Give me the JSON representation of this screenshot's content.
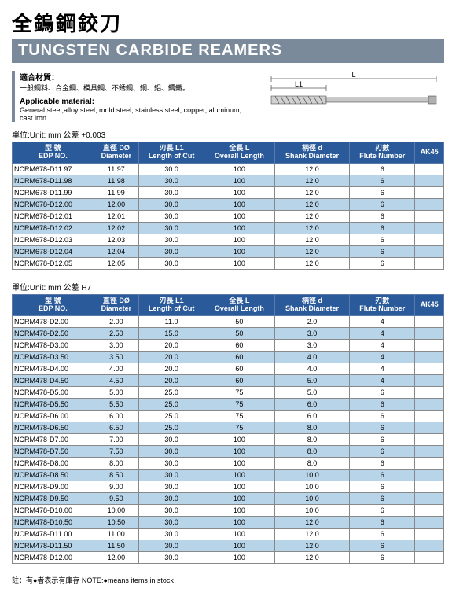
{
  "titles": {
    "cn": "全鎢鋼鉸刀",
    "en": "TUNGSTEN CARBIDE REAMERS"
  },
  "material": {
    "label_cn": "適合材質：",
    "desc_cn": "一般鋼料、合金鋼、模具鋼、不銹鋼、銅、鋁、鑄鐵。",
    "label_en": "Applicable material:",
    "desc_en": "General steel,alloy steel, mold steel, stainless steel, copper, aluminum, cast iron."
  },
  "diagram": {
    "label_L": "L",
    "label_L1": "L1"
  },
  "table1": {
    "unit": "單位:Unit: mm  公差 +0.003",
    "headers": [
      "型 號\nEDP NO.",
      "直徑 DØ\nDiameter",
      "刃長 L1\nLength of Cut",
      "全長 L\nOverall Length",
      "柄徑 d\nShank Diameter",
      "刃數\nFlute Number",
      "AK45"
    ],
    "rows": [
      [
        "NCRM678-D11.97",
        "11.97",
        "30.0",
        "100",
        "12.0",
        "6",
        ""
      ],
      [
        "NCRM678-D11.98",
        "11.98",
        "30.0",
        "100",
        "12.0",
        "6",
        ""
      ],
      [
        "NCRM678-D11.99",
        "11.99",
        "30.0",
        "100",
        "12.0",
        "6",
        ""
      ],
      [
        "NCRM678-D12.00",
        "12.00",
        "30.0",
        "100",
        "12.0",
        "6",
        ""
      ],
      [
        "NCRM678-D12.01",
        "12.01",
        "30.0",
        "100",
        "12.0",
        "6",
        ""
      ],
      [
        "NCRM678-D12.02",
        "12.02",
        "30.0",
        "100",
        "12.0",
        "6",
        ""
      ],
      [
        "NCRM678-D12.03",
        "12.03",
        "30.0",
        "100",
        "12.0",
        "6",
        ""
      ],
      [
        "NCRM678-D12.04",
        "12.04",
        "30.0",
        "100",
        "12.0",
        "6",
        ""
      ],
      [
        "NCRM678-D12.05",
        "12.05",
        "30.0",
        "100",
        "12.0",
        "6",
        ""
      ]
    ]
  },
  "table2": {
    "unit": "單位:Unit: mm  公差 H7",
    "headers": [
      "型 號\nEDP NO.",
      "直徑 DØ\nDiameter",
      "刃長 L1\nLength of Cut",
      "全長 L\nOverall Length",
      "柄徑 d\nShank Diameter",
      "刃數\nFlute Number",
      "AK45"
    ],
    "rows": [
      [
        "NCRM478-D2.00",
        "2.00",
        "11.0",
        "50",
        "2.0",
        "4",
        ""
      ],
      [
        "NCRM478-D2.50",
        "2.50",
        "15.0",
        "50",
        "3.0",
        "4",
        ""
      ],
      [
        "NCRM478-D3.00",
        "3.00",
        "20.0",
        "60",
        "3.0",
        "4",
        ""
      ],
      [
        "NCRM478-D3.50",
        "3.50",
        "20.0",
        "60",
        "4.0",
        "4",
        ""
      ],
      [
        "NCRM478-D4.00",
        "4.00",
        "20.0",
        "60",
        "4.0",
        "4",
        ""
      ],
      [
        "NCRM478-D4.50",
        "4.50",
        "20.0",
        "60",
        "5.0",
        "4",
        ""
      ],
      [
        "NCRM478-D5.00",
        "5.00",
        "25.0",
        "75",
        "5.0",
        "6",
        ""
      ],
      [
        "NCRM478-D5.50",
        "5.50",
        "25.0",
        "75",
        "6.0",
        "6",
        ""
      ],
      [
        "NCRM478-D6.00",
        "6.00",
        "25.0",
        "75",
        "6.0",
        "6",
        ""
      ],
      [
        "NCRM478-D6.50",
        "6.50",
        "25.0",
        "75",
        "8.0",
        "6",
        ""
      ],
      [
        "NCRM478-D7.00",
        "7.00",
        "30.0",
        "100",
        "8.0",
        "6",
        ""
      ],
      [
        "NCRM478-D7.50",
        "7.50",
        "30.0",
        "100",
        "8.0",
        "6",
        ""
      ],
      [
        "NCRM478-D8.00",
        "8.00",
        "30.0",
        "100",
        "8.0",
        "6",
        ""
      ],
      [
        "NCRM478-D8.50",
        "8.50",
        "30.0",
        "100",
        "10.0",
        "6",
        ""
      ],
      [
        "NCRM478-D9.00",
        "9.00",
        "30.0",
        "100",
        "10.0",
        "6",
        ""
      ],
      [
        "NCRM478-D9.50",
        "9.50",
        "30.0",
        "100",
        "10.0",
        "6",
        ""
      ],
      [
        "NCRM478-D10.00",
        "10.00",
        "30.0",
        "100",
        "10.0",
        "6",
        ""
      ],
      [
        "NCRM478-D10.50",
        "10.50",
        "30.0",
        "100",
        "12.0",
        "6",
        ""
      ],
      [
        "NCRM478-D11.00",
        "11.00",
        "30.0",
        "100",
        "12.0",
        "6",
        ""
      ],
      [
        "NCRM478-D11.50",
        "11.50",
        "30.0",
        "100",
        "12.0",
        "6",
        ""
      ],
      [
        "NCRM478-D12.00",
        "12.00",
        "30.0",
        "100",
        "12.0",
        "6",
        ""
      ]
    ]
  },
  "note": "註：有●者表示有庫存 NOTE:●means items in stock",
  "colors": {
    "header_bg": "#2a5a9a",
    "row_even": "#b8d4e8",
    "title_bar": "#7a8a9a"
  }
}
